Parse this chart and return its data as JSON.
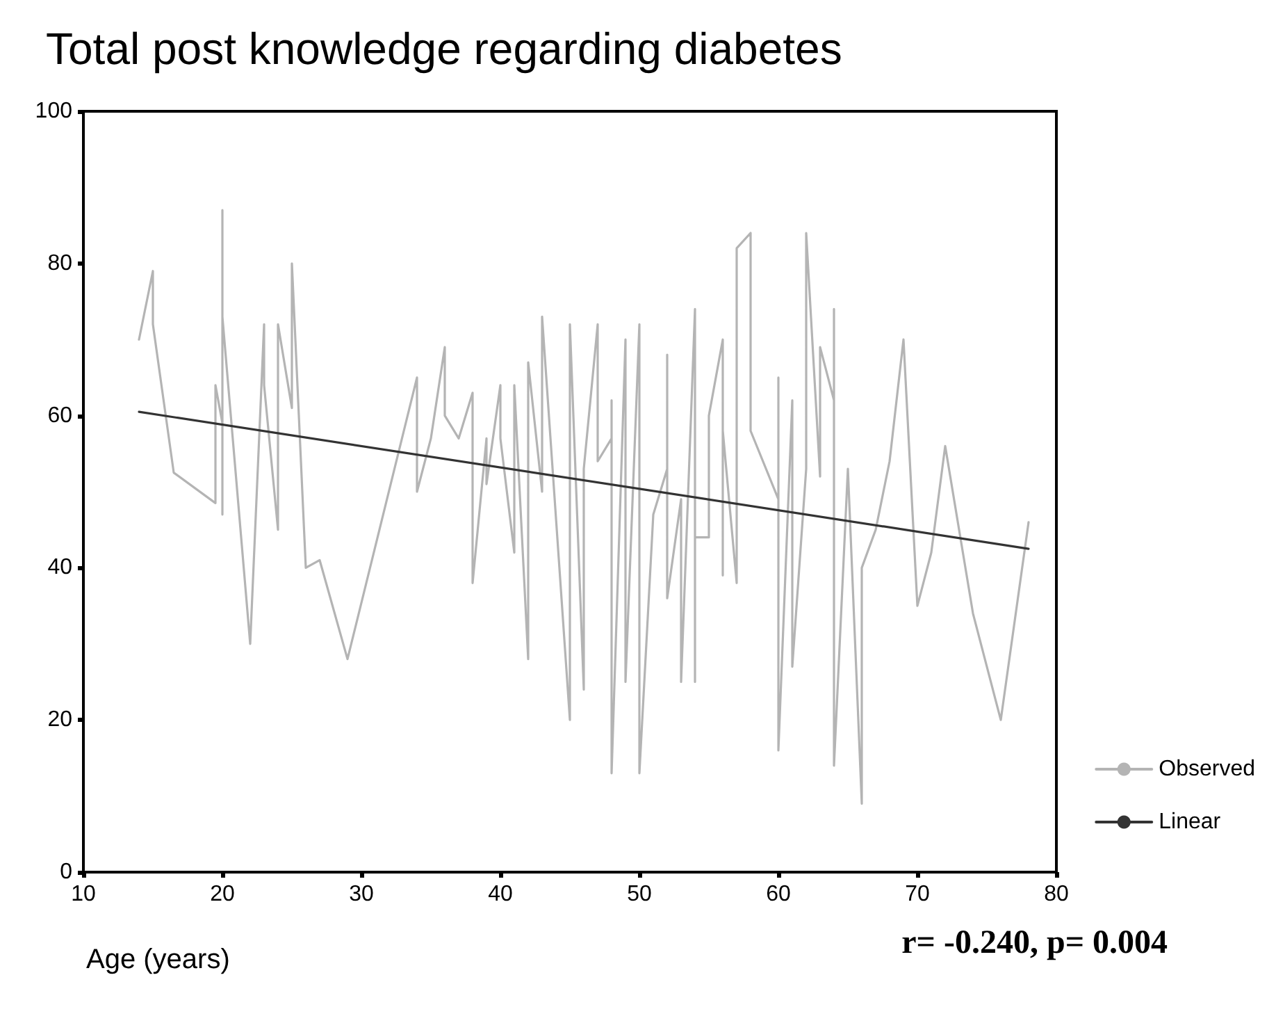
{
  "chart_data": {
    "type": "line",
    "title": "Total post knowledge regarding diabetes",
    "xlabel": "Age (years)",
    "annotations": [
      "r= -0.240, p= 0.004"
    ],
    "xlim": [
      10,
      80
    ],
    "xticks": [
      10,
      20,
      30,
      40,
      50,
      60,
      70,
      80
    ],
    "ylim": [
      0,
      100
    ],
    "yticks": [
      0,
      20,
      40,
      60,
      80,
      100
    ],
    "grid": false,
    "legend": "bottom right",
    "marker": "none",
    "line_style": "solid",
    "series": [
      {
        "name": "Observed",
        "color": "#b4b4b4",
        "x": [
          14,
          15,
          15,
          16.5,
          19.5,
          19.5,
          20,
          20,
          20,
          20,
          22,
          23,
          23,
          24,
          24,
          25,
          25,
          26,
          27,
          29,
          34,
          34,
          35,
          36,
          36,
          37,
          38,
          38,
          39,
          39,
          40,
          40,
          41,
          41,
          42,
          42,
          43,
          43,
          45,
          45,
          46,
          46,
          47,
          47,
          48,
          48,
          48,
          49,
          49,
          50,
          50,
          51,
          52,
          52,
          52,
          53,
          53,
          54,
          54,
          54,
          55,
          55,
          56,
          56,
          56,
          57,
          57,
          58,
          58,
          60,
          60,
          60,
          61,
          61,
          62,
          62,
          63,
          63,
          64,
          64,
          64,
          65,
          66,
          66,
          67,
          68,
          69,
          70,
          71,
          72,
          74,
          76,
          78
        ],
        "values": [
          70,
          79,
          72,
          52.5,
          48.5,
          64,
          59,
          87,
          47,
          73,
          30,
          72,
          64,
          45,
          72,
          61,
          80,
          40,
          41,
          28,
          65,
          50,
          57,
          69,
          60,
          57,
          63,
          38,
          57,
          51,
          64,
          57,
          42,
          64,
          28,
          67,
          50,
          73,
          20,
          72,
          24,
          53,
          72,
          54,
          57,
          62,
          13,
          70,
          25,
          72,
          13,
          47,
          53,
          68,
          36,
          49,
          25,
          74,
          25,
          44,
          44,
          60,
          70,
          39,
          58,
          38,
          82,
          84,
          58,
          49,
          65,
          16,
          62,
          27,
          53,
          84,
          52,
          69,
          62,
          74,
          14,
          53,
          9,
          40,
          45,
          54,
          70,
          35,
          42,
          56,
          34,
          20,
          46
        ]
      },
      {
        "name": "Linear",
        "color": "#333333",
        "x": [
          14,
          78
        ],
        "values": [
          60.5,
          42.5
        ]
      }
    ]
  }
}
